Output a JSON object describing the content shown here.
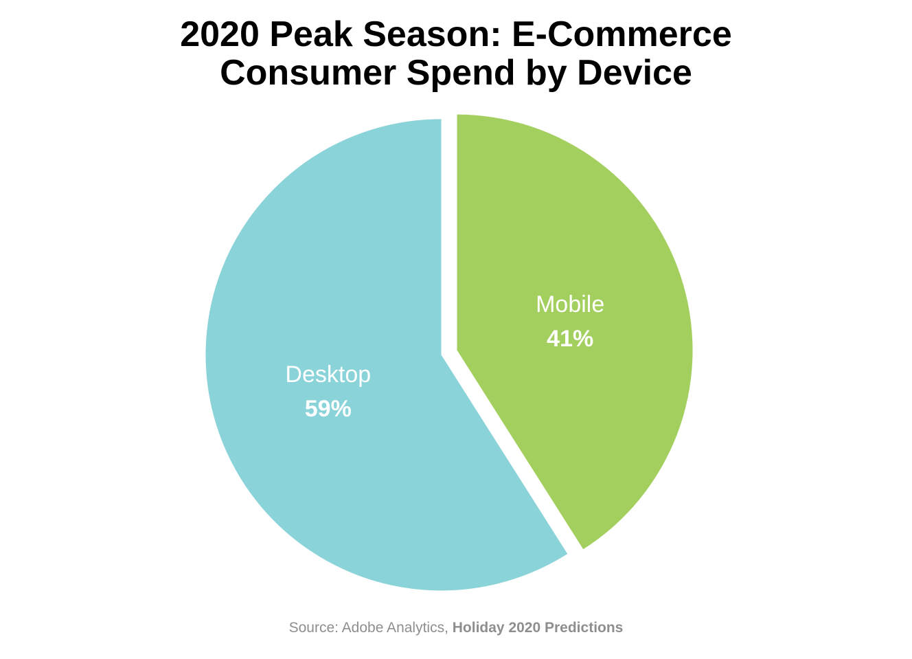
{
  "chart_data": {
    "type": "pie",
    "title": "2020 Peak Season: E-Commerce Consumer Spend by Device",
    "title_lines": [
      "2020 Peak Season: E-Commerce",
      "Consumer Spend by Device"
    ],
    "slices": [
      {
        "label": "Mobile",
        "value": 41,
        "value_label": "41%",
        "color": "#a3cf5f"
      },
      {
        "label": "Desktop",
        "value": 59,
        "value_label": "59%",
        "color": "#8ad3d9"
      }
    ],
    "source_prefix": "Source: Adobe Analytics, ",
    "source_emphasis": "Holiday 2020 Predictions"
  }
}
